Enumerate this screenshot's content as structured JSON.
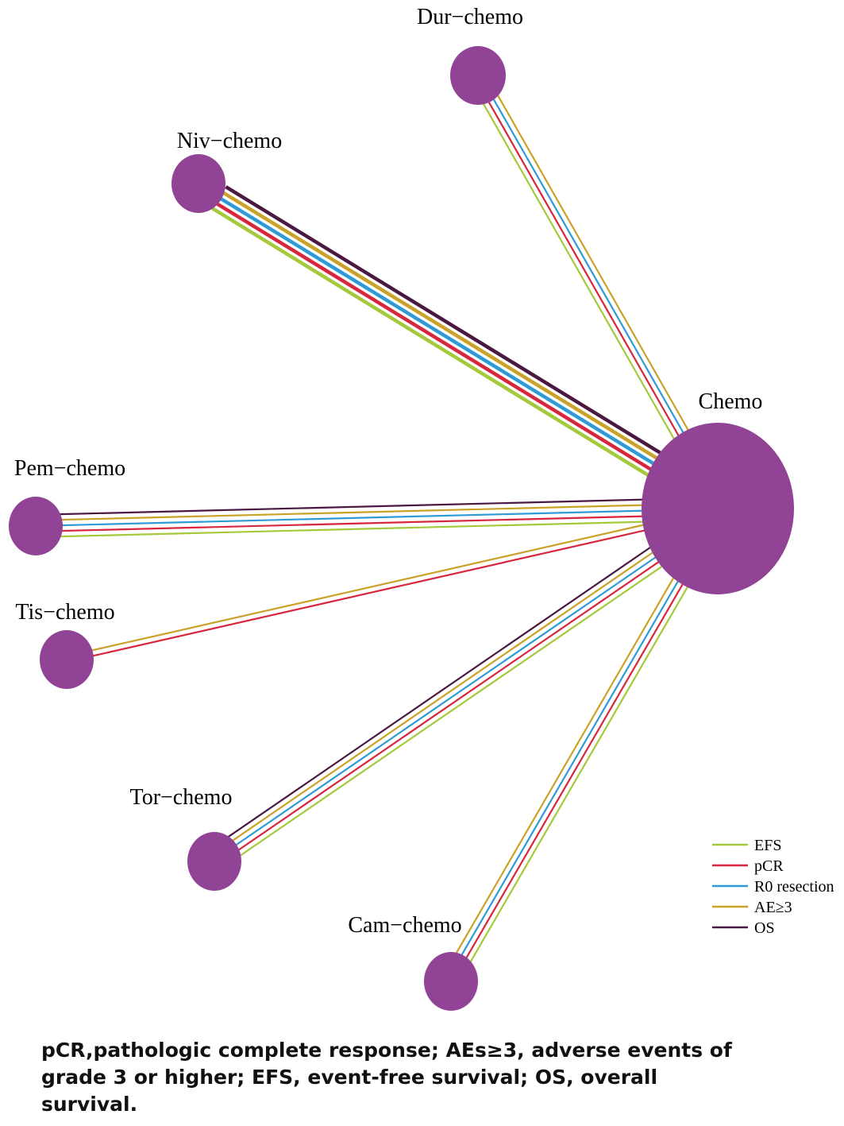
{
  "network": {
    "outcomes": [
      {
        "name": "EFS",
        "color": "#a4c93a"
      },
      {
        "name": "pCR",
        "color": "#d7263d"
      },
      {
        "name": "R0 resection",
        "color": "#2f9bd6"
      },
      {
        "name": "AE≥3",
        "color": "#c9a227"
      },
      {
        "name": "OS",
        "color": "#4a1942"
      }
    ],
    "node_color": "#914495",
    "nodes": [
      {
        "id": "chemo",
        "label": "Chemo"
      },
      {
        "id": "dur",
        "label": "Dur−chemo"
      },
      {
        "id": "niv",
        "label": "Niv−chemo"
      },
      {
        "id": "pem",
        "label": "Pem−chemo"
      },
      {
        "id": "tis",
        "label": "Tis−chemo"
      },
      {
        "id": "tor",
        "label": "Tor−chemo"
      },
      {
        "id": "cam",
        "label": "Cam−chemo"
      }
    ],
    "edges": [
      {
        "from": "dur",
        "to": "chemo",
        "outcomes": [
          "EFS",
          "pCR",
          "R0 resection",
          "AE≥3"
        ]
      },
      {
        "from": "niv",
        "to": "chemo",
        "outcomes": [
          "EFS",
          "pCR",
          "R0 resection",
          "AE≥3",
          "OS"
        ]
      },
      {
        "from": "pem",
        "to": "chemo",
        "outcomes": [
          "EFS",
          "pCR",
          "R0 resection",
          "AE≥3",
          "OS"
        ]
      },
      {
        "from": "tis",
        "to": "chemo",
        "outcomes": [
          "pCR",
          "AE≥3"
        ]
      },
      {
        "from": "tor",
        "to": "chemo",
        "outcomes": [
          "EFS",
          "pCR",
          "R0 resection",
          "AE≥3",
          "OS"
        ]
      },
      {
        "from": "cam",
        "to": "chemo",
        "outcomes": [
          "EFS",
          "pCR",
          "R0 resection",
          "AE≥3"
        ]
      }
    ]
  },
  "caption": "pCR,pathologic complete response; AEs≥3, adverse events of grade 3 or higher; EFS, event-free survival; OS, overall survival."
}
